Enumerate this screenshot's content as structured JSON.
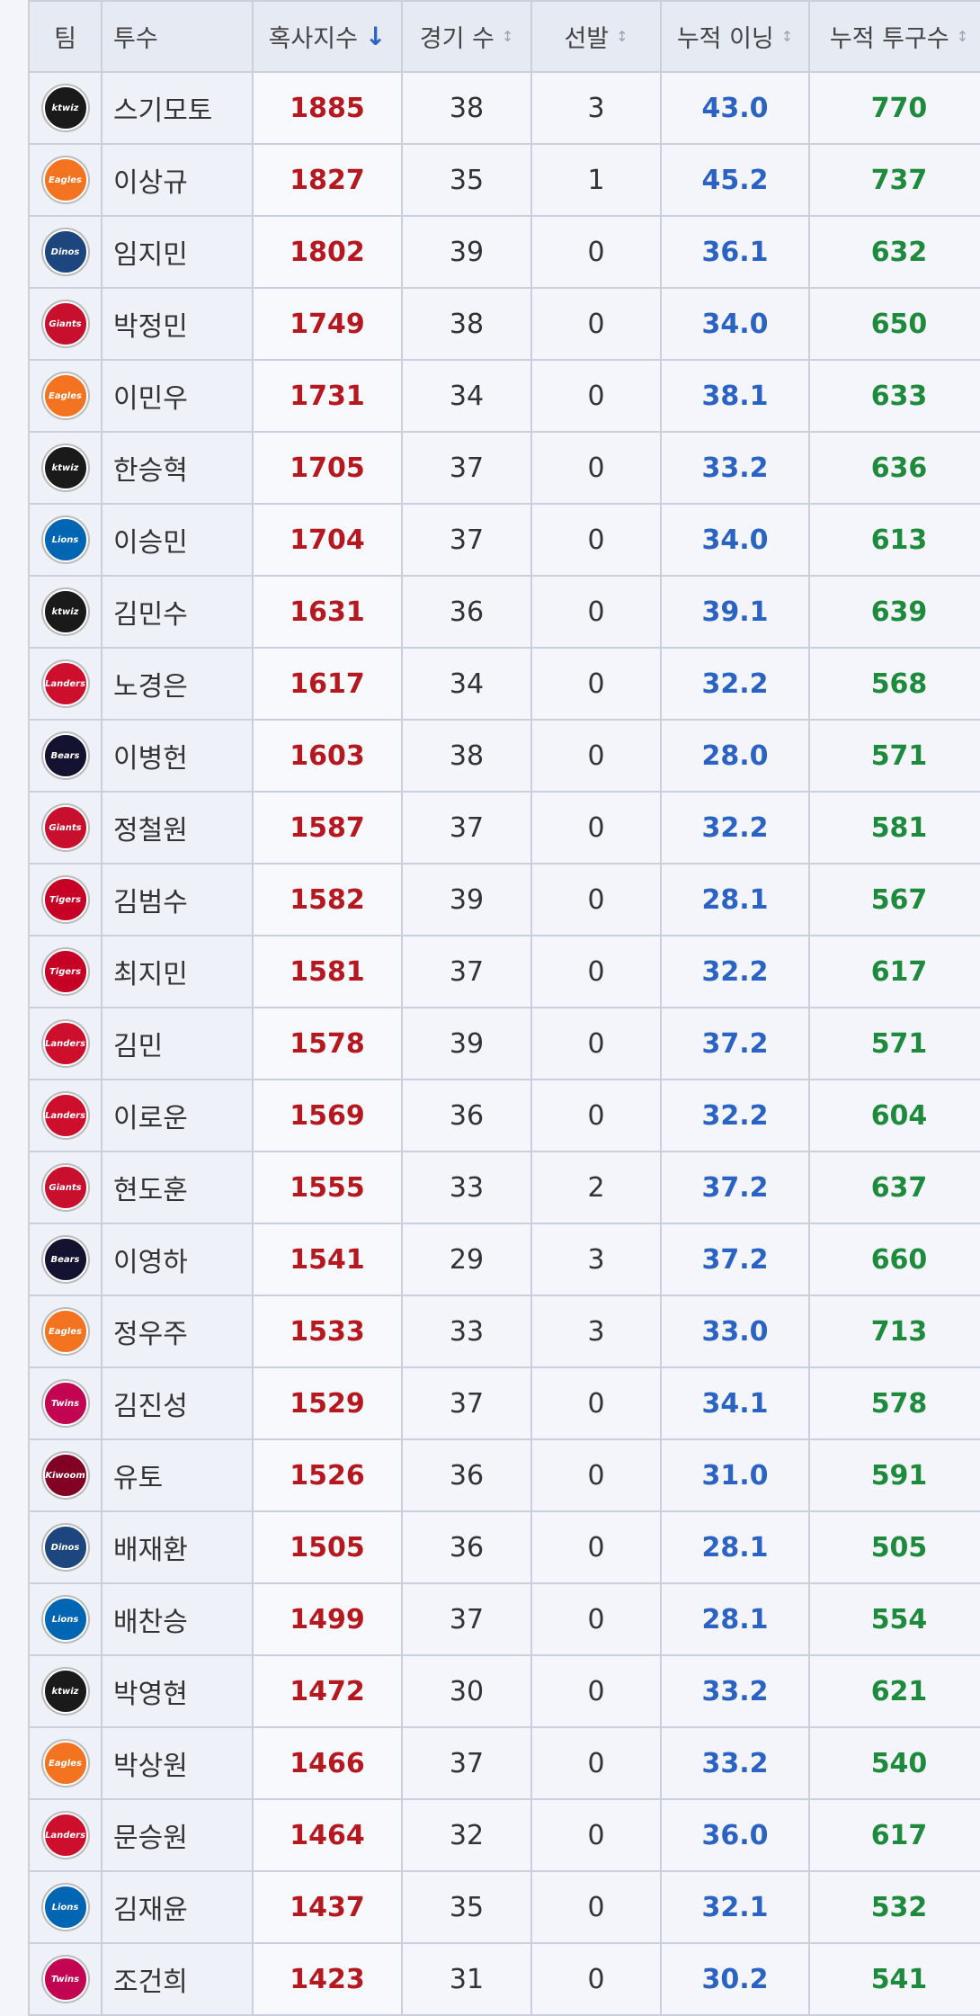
{
  "table": {
    "headers": [
      "팀",
      "투수",
      "혹사지수",
      "경기 수",
      "선발",
      "누적 이닝",
      "누적 투구수"
    ],
    "rows": [
      {
        "logo": "ktwiz",
        "logo_color": "#1a1a1a",
        "cells": [
          "스기모토",
          1885,
          38,
          3,
          "43.0",
          770
        ]
      },
      {
        "logo": "Eagles",
        "logo_color": "#f37321",
        "cells": [
          "이상규",
          1827,
          35,
          1,
          "45.2",
          737
        ]
      },
      {
        "logo": "Dinos",
        "logo_color": "#1d467f",
        "cells": [
          "임지민",
          1802,
          39,
          0,
          "36.1",
          632
        ]
      },
      {
        "logo": "Giants",
        "logo_color": "#c8102e",
        "cells": [
          "박정민",
          1749,
          38,
          0,
          "34.0",
          650
        ]
      },
      {
        "logo": "Eagles",
        "logo_color": "#f37321",
        "cells": [
          "이민우",
          1731,
          34,
          0,
          "38.1",
          633
        ]
      },
      {
        "logo": "ktwiz",
        "logo_color": "#1a1a1a",
        "cells": [
          "한승혁",
          1705,
          37,
          0,
          "33.2",
          636
        ]
      },
      {
        "logo": "Lions",
        "logo_color": "#0066b3",
        "cells": [
          "이승민",
          1704,
          37,
          0,
          "34.0",
          613
        ]
      },
      {
        "logo": "ktwiz",
        "logo_color": "#1a1a1a",
        "cells": [
          "김민수",
          1631,
          36,
          0,
          "39.1",
          639
        ]
      },
      {
        "logo": "Landers",
        "logo_color": "#ce0e2d",
        "cells": [
          "노경은",
          1617,
          34,
          0,
          "32.2",
          568
        ]
      },
      {
        "logo": "Bears",
        "logo_color": "#131230",
        "cells": [
          "이병헌",
          1603,
          38,
          0,
          "28.0",
          571
        ]
      },
      {
        "logo": "Giants",
        "logo_color": "#c8102e",
        "cells": [
          "정철원",
          1587,
          37,
          0,
          "32.2",
          581
        ]
      },
      {
        "logo": "Tigers",
        "logo_color": "#c70125",
        "cells": [
          "김범수",
          1582,
          39,
          0,
          "28.1",
          567
        ]
      },
      {
        "logo": "Tigers",
        "logo_color": "#c70125",
        "cells": [
          "최지민",
          1581,
          37,
          0,
          "32.2",
          617
        ]
      },
      {
        "logo": "Landers",
        "logo_color": "#ce0e2d",
        "cells": [
          "김민",
          1578,
          39,
          0,
          "37.2",
          571
        ]
      },
      {
        "logo": "Landers",
        "logo_color": "#ce0e2d",
        "cells": [
          "이로운",
          1569,
          36,
          0,
          "32.2",
          604
        ]
      },
      {
        "logo": "Giants",
        "logo_color": "#c8102e",
        "cells": [
          "현도훈",
          1555,
          33,
          2,
          "37.2",
          637
        ]
      },
      {
        "logo": "Bears",
        "logo_color": "#131230",
        "cells": [
          "이영하",
          1541,
          29,
          3,
          "37.2",
          660
        ]
      },
      {
        "logo": "Eagles",
        "logo_color": "#f37321",
        "cells": [
          "정우주",
          1533,
          33,
          3,
          "33.0",
          713
        ]
      },
      {
        "logo": "Twins",
        "logo_color": "#c30452",
        "cells": [
          "김진성",
          1529,
          37,
          0,
          "34.1",
          578
        ]
      },
      {
        "logo": "Kiwoom",
        "logo_color": "#820024",
        "cells": [
          "유토",
          1526,
          36,
          0,
          "31.0",
          591
        ]
      },
      {
        "logo": "Dinos",
        "logo_color": "#1d467f",
        "cells": [
          "배재환",
          1505,
          36,
          0,
          "28.1",
          505
        ]
      },
      {
        "logo": "Lions",
        "logo_color": "#0066b3",
        "cells": [
          "배찬승",
          1499,
          37,
          0,
          "28.1",
          554
        ]
      },
      {
        "logo": "ktwiz",
        "logo_color": "#1a1a1a",
        "cells": [
          "박영현",
          1472,
          30,
          0,
          "33.2",
          621
        ]
      },
      {
        "logo": "Eagles",
        "logo_color": "#f37321",
        "cells": [
          "박상원",
          1466,
          37,
          0,
          "33.2",
          540
        ]
      },
      {
        "logo": "Landers",
        "logo_color": "#ce0e2d",
        "cells": [
          "문승원",
          1464,
          32,
          0,
          "36.0",
          617
        ]
      },
      {
        "logo": "Lions",
        "logo_color": "#0066b3",
        "cells": [
          "김재윤",
          1437,
          35,
          0,
          "32.1",
          532
        ]
      },
      {
        "logo": "Twins",
        "logo_color": "#c30452",
        "cells": [
          "조건희",
          1423,
          31,
          0,
          "30.2",
          541
        ]
      }
    ]
  }
}
